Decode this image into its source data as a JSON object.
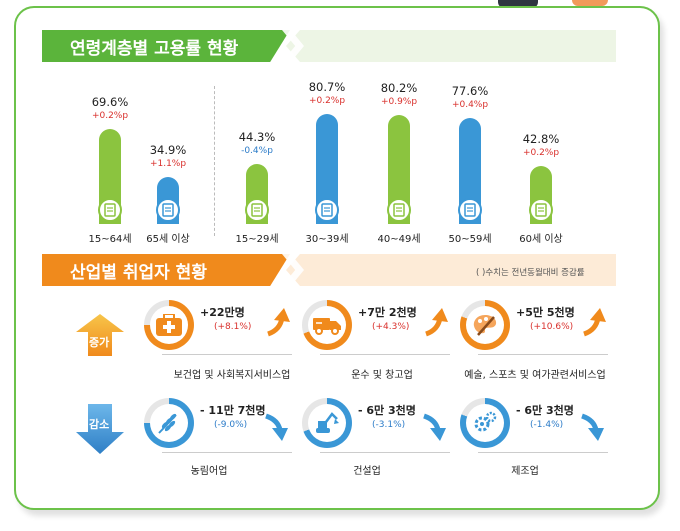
{
  "section1": {
    "title": "연령계층별 고용률 현황"
  },
  "section2": {
    "title": "산업별 취업자 현황",
    "note": "( )수치는 전년동월대비 증감률"
  },
  "chart_data": {
    "type": "bar",
    "title": "연령계층별 고용률 현황",
    "categories": [
      "15~64세",
      "65세 이상",
      "15~29세",
      "30~39세",
      "40~49세",
      "50~59세",
      "60세 이상"
    ],
    "values": [
      69.6,
      34.9,
      44.3,
      80.7,
      80.2,
      77.6,
      42.8
    ],
    "value_labels": [
      "69.6%",
      "34.9%",
      "44.3%",
      "80.7%",
      "80.2%",
      "77.6%",
      "42.8%"
    ],
    "changes": [
      "+0.2%p",
      "+1.1%p",
      "-0.4%p",
      "+0.2%p",
      "+0.9%p",
      "+0.4%p",
      "+0.2%p"
    ],
    "change_dir": [
      "up",
      "up",
      "down",
      "up",
      "up",
      "up",
      "up"
    ],
    "bar_colors": [
      "#8bc43f",
      "#3a97d6",
      "#8bc43f",
      "#3a97d6",
      "#8bc43f",
      "#3a97d6",
      "#8bc43f"
    ],
    "unit": "%",
    "ylim": [
      0,
      100
    ]
  },
  "industry": {
    "increase_label": "증가",
    "decrease_label": "감소",
    "increase": [
      {
        "name": "보건업 및 사회복지서비스업",
        "value": "+22만명",
        "pct": "(+8.1%)",
        "icon": "first-aid-icon"
      },
      {
        "name": "운수 및 창고업",
        "value": "+7만 2천명",
        "pct": "(+4.3%)",
        "icon": "truck-icon"
      },
      {
        "name": "예술, 스포츠 및 여가관련서비스업",
        "value": "+5만 5천명",
        "pct": "(+10.6%)",
        "icon": "palette-icon"
      }
    ],
    "decrease": [
      {
        "name": "농림어업",
        "value": "- 11만 7천명",
        "pct": "(-9.0%)",
        "icon": "wheat-icon"
      },
      {
        "name": "건설업",
        "value": "- 6만 3천명",
        "pct": "(-3.1%)",
        "icon": "excavator-icon"
      },
      {
        "name": "제조업",
        "value": "- 6만 3천명",
        "pct": "(-1.4%)",
        "icon": "gears-icon"
      }
    ]
  },
  "colors": {
    "green": "#5bb43b",
    "orange": "#f08a1c",
    "blue": "#3a97d6",
    "red": "#d9302c"
  }
}
